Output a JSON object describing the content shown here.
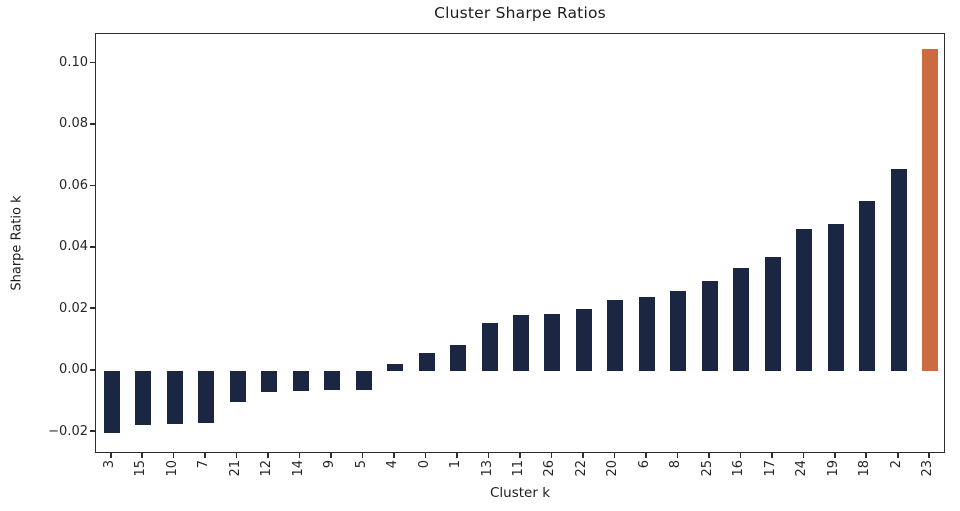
{
  "title": "Cluster Sharpe Ratios",
  "axes": {
    "xlabel": "Cluster k",
    "ylabel": "Sharpe Ratio k"
  },
  "colors": {
    "bar_default": "#1a2642",
    "bar_highlight": "#cc6b42",
    "spine": "#2e2e2e",
    "text": "#262626",
    "background": "#ffffff"
  },
  "chart_data": {
    "type": "bar",
    "title": "Cluster Sharpe Ratios",
    "xlabel": "Cluster k",
    "ylabel": "Sharpe Ratio k",
    "categories": [
      "3",
      "15",
      "10",
      "7",
      "21",
      "12",
      "14",
      "9",
      "5",
      "4",
      "0",
      "1",
      "13",
      "11",
      "26",
      "22",
      "20",
      "6",
      "8",
      "25",
      "16",
      "17",
      "24",
      "19",
      "18",
      "2",
      "23"
    ],
    "values": [
      -0.0204,
      -0.0176,
      -0.0173,
      -0.017,
      -0.0101,
      -0.0068,
      -0.0066,
      -0.0064,
      -0.0063,
      0.0021,
      0.0057,
      0.0085,
      0.0157,
      0.0182,
      0.0186,
      0.02,
      0.0231,
      0.0239,
      0.0261,
      0.0293,
      0.0336,
      0.0369,
      0.0462,
      0.0479,
      0.0551,
      0.0658,
      0.1046
    ],
    "highlight_category": "23",
    "bar_color_default": "#1a2642",
    "bar_color_highlight": "#cc6b42",
    "ylim": [
      -0.0271,
      0.1096
    ],
    "yticks": {
      "values": [
        0.1,
        0.08,
        0.06,
        0.04,
        0.02,
        0.0,
        -0.02
      ],
      "labels": [
        "0.10",
        "0.08",
        "0.06",
        "0.04",
        "0.02",
        "0.00",
        "−0.02"
      ]
    },
    "xtick_rotation_deg": 90,
    "grid": false,
    "legend": null
  }
}
